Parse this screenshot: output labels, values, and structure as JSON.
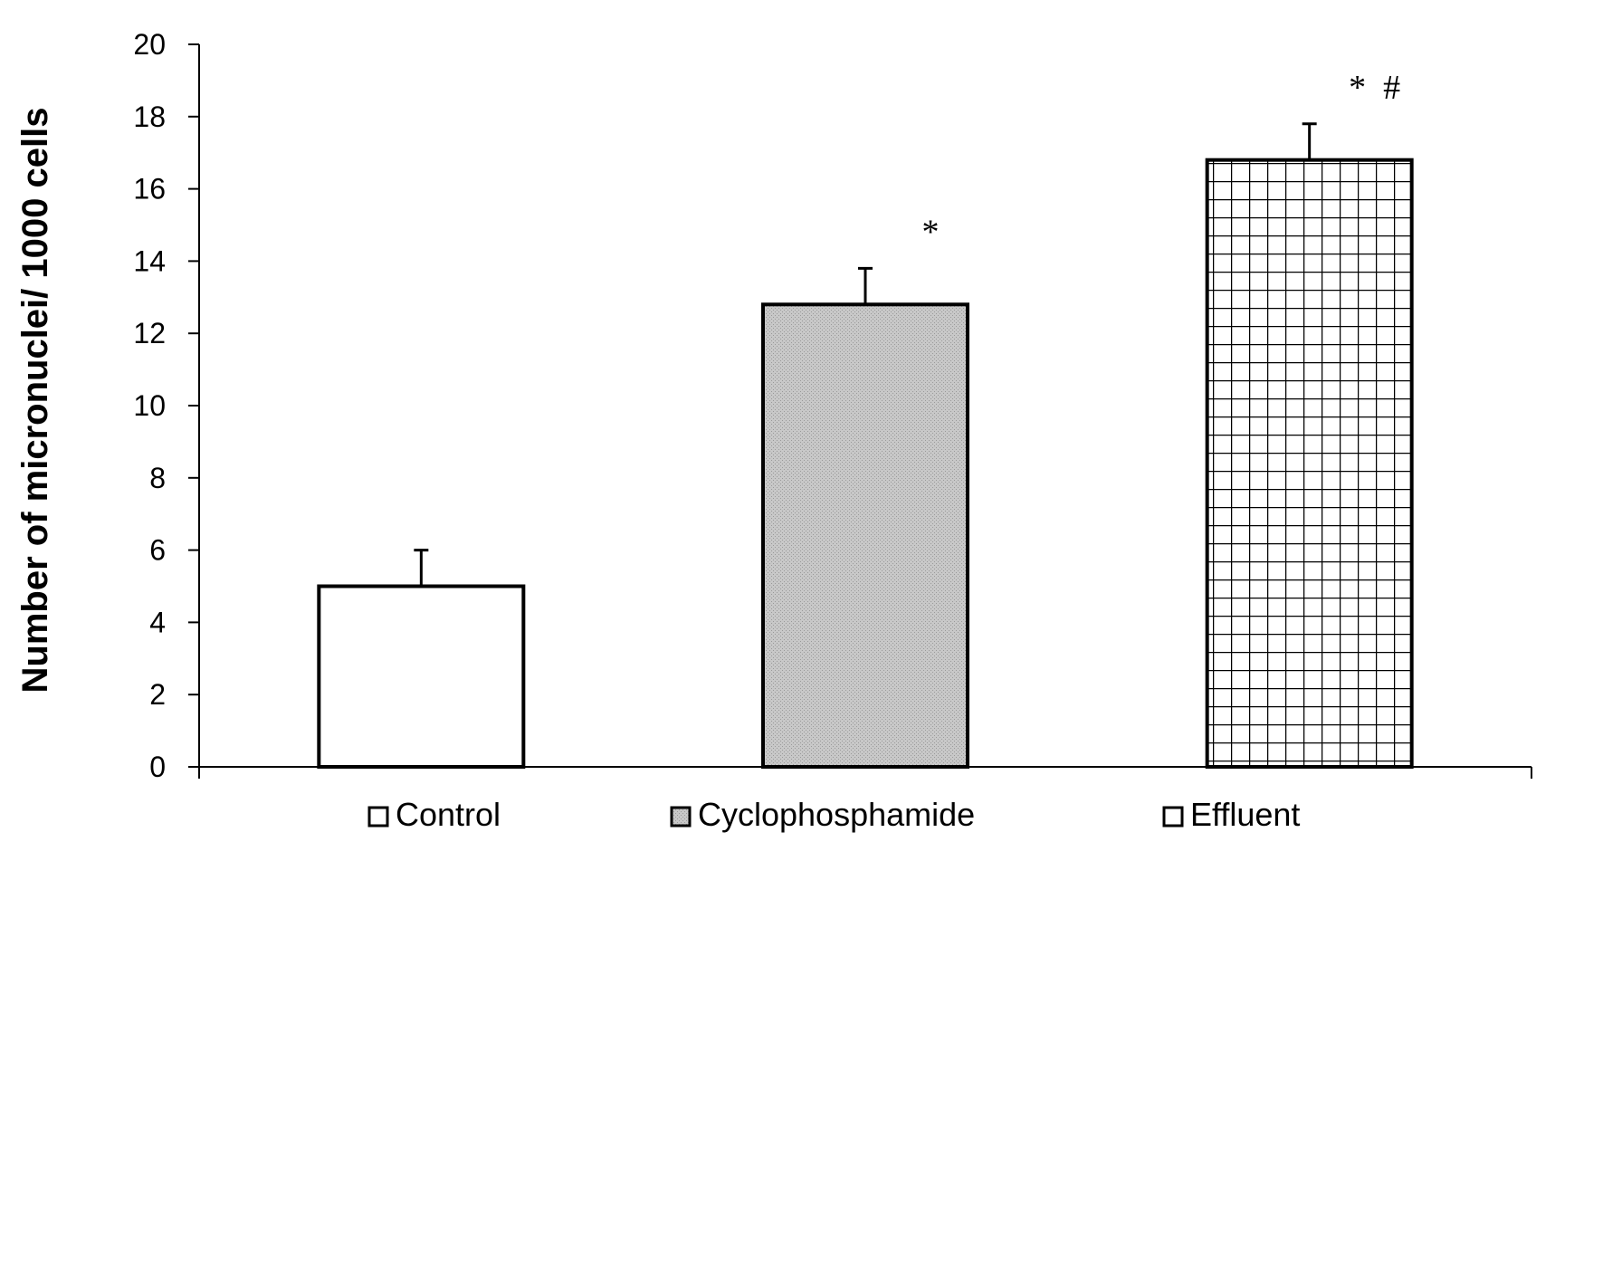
{
  "chart_data": {
    "type": "bar",
    "title": "",
    "xlabel": "",
    "ylabel": "Number of micronuclei/ 1000 cells",
    "ylim": [
      0,
      20
    ],
    "y_ticks": [
      0,
      2,
      4,
      6,
      8,
      10,
      12,
      14,
      16,
      18,
      20
    ],
    "grid": false,
    "legend_position": "bottom",
    "series": [
      {
        "name": "Control",
        "value": 5.0,
        "error": 1.0,
        "annotation": "",
        "fill": "#ffffff",
        "pattern": "none"
      },
      {
        "name": "Cyclophosphamide",
        "value": 12.8,
        "error": 1.0,
        "annotation": "*",
        "fill": "#c8c8c8",
        "pattern": "dotted-gray"
      },
      {
        "name": "Effluent",
        "value": 16.8,
        "error": 1.0,
        "annotation": "*  #",
        "fill": "#ffffff",
        "pattern": "grid"
      }
    ]
  }
}
